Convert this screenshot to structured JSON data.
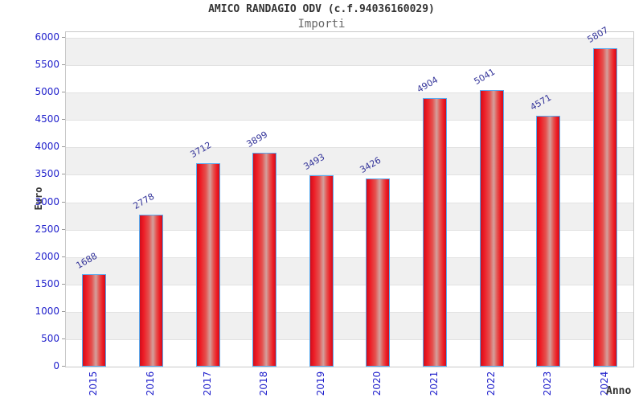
{
  "chart_data": {
    "type": "bar",
    "title": "AMICO RANDAGIO ODV (c.f.94036160029)",
    "subtitle": "Importi",
    "xlabel": "Anno",
    "ylabel": "Euro",
    "categories": [
      "2015",
      "2016",
      "2017",
      "2018",
      "2019",
      "2020",
      "2021",
      "2022",
      "2023",
      "2024"
    ],
    "values": [
      1688,
      2778,
      3712,
      3899,
      3493,
      3426,
      4904,
      5041,
      4571,
      5807
    ],
    "ylim": [
      0,
      6000
    ],
    "ytick_step": 500,
    "grid": true,
    "legend": "none",
    "colors": {
      "tick_label": "#2222cc",
      "value_label": "#333399",
      "bar_border": "#58aaf0",
      "bar_gradient": [
        [
          "#cf0e1c",
          0
        ],
        [
          "#ee1c25",
          16
        ],
        [
          "#e4524f",
          40
        ],
        [
          "#d4a09c",
          58
        ],
        [
          "#e4524f",
          74
        ],
        [
          "#ee1c25",
          88
        ],
        [
          "#cf0e1c",
          100
        ]
      ],
      "band_alt": "#f0f0f0",
      "band_main": "#ffffff",
      "gridline": "#e2e2e2",
      "plot_border": "#c9c9c9",
      "title_text": "#333333",
      "subtitle_text": "#666666",
      "axis_title_text": "#333333"
    }
  }
}
